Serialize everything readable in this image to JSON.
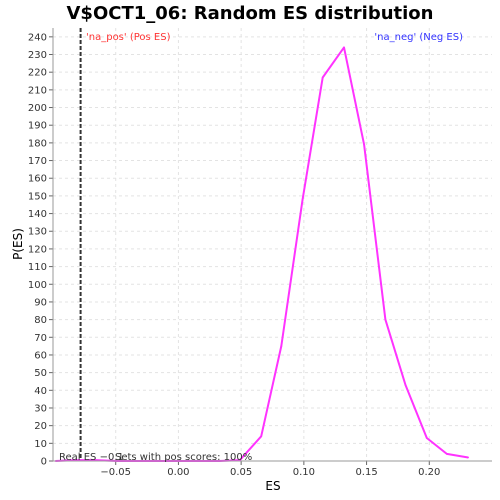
{
  "chart_data": {
    "type": "line",
    "title": "V$OCT1_06: Random ES distribution",
    "xlabel": "ES",
    "ylabel": "P(ES)",
    "xlim": [
      -0.1,
      0.25
    ],
    "ylim": [
      0,
      245
    ],
    "x_ticks": [
      -0.05,
      0.0,
      0.05,
      0.1,
      0.15,
      0.2
    ],
    "x_tick_labels": [
      "−0.05",
      "0.00",
      "0.05",
      "0.10",
      "0.15",
      "0.20"
    ],
    "y_ticks": [
      0,
      10,
      20,
      30,
      40,
      50,
      60,
      70,
      80,
      90,
      100,
      110,
      120,
      130,
      140,
      150,
      160,
      170,
      180,
      190,
      200,
      210,
      220,
      230,
      240
    ],
    "grid": true,
    "series": [
      {
        "color": "#ff33ff",
        "x": [
          -0.098,
          -0.082,
          -0.066,
          -0.049,
          -0.033,
          -0.016,
          0.0,
          0.016,
          0.033,
          0.049,
          0.066,
          0.082,
          0.099,
          0.115,
          0.132,
          0.148,
          0.165,
          0.181,
          0.198,
          0.214,
          0.231
        ],
        "y": [
          0,
          0.5,
          0.5,
          0,
          0,
          0,
          0,
          0,
          0,
          0.5,
          14,
          65,
          148,
          217,
          234,
          179,
          80,
          43,
          13,
          4,
          2
        ]
      }
    ],
    "real_es": {
      "value": -0.078,
      "style": "dashed",
      "color": "#333333"
    },
    "legend": {
      "pos": {
        "text": "'na_pos' (Pos ES)",
        "color": "#ff3333",
        "placement": "top-left"
      },
      "neg": {
        "text": "'na_neg' (Neg ES)",
        "color": "#3333ff",
        "placement": "top-right"
      }
    },
    "annotations": {
      "real_es": "Real ES −0.1",
      "pos_scores": "Sets with pos scores: 100%"
    }
  }
}
